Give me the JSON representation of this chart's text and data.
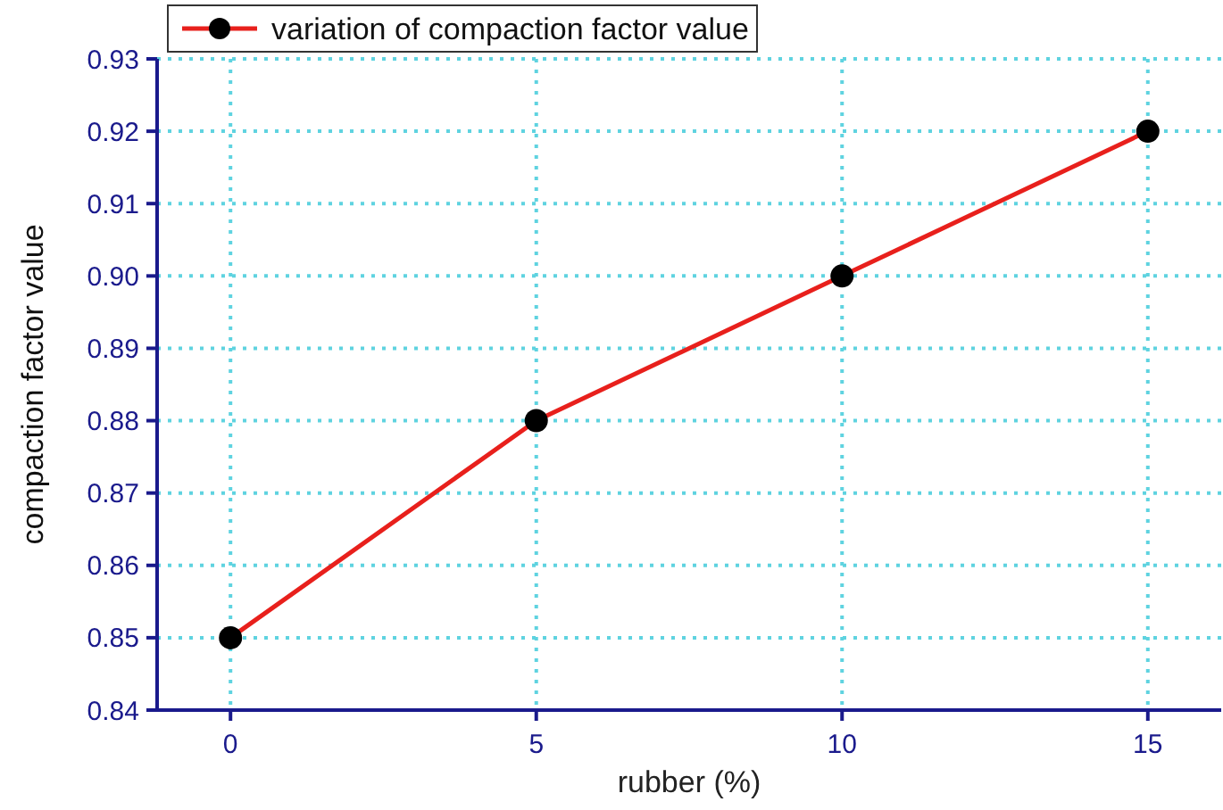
{
  "chart_data": {
    "type": "line",
    "xlabel": "rubber (%)",
    "ylabel": "compaction factor value",
    "x": [
      0,
      5,
      10,
      15
    ],
    "series": [
      {
        "name": "variation of compaction factor value",
        "color": "#e8201c",
        "values": [
          0.85,
          0.88,
          0.9,
          0.92
        ]
      }
    ],
    "xlim": [
      -1.2,
      16.2
    ],
    "xticks": [
      0,
      5,
      10,
      15
    ],
    "ylim": [
      0.84,
      0.93
    ],
    "yticks": [
      0.84,
      0.85,
      0.86,
      0.87,
      0.88,
      0.89,
      {
        "value": 0.9,
        "label": "0.90"
      },
      0.91,
      0.92,
      0.93
    ],
    "grid": true,
    "legend": "top left",
    "marker": "circle",
    "line_style": "solid"
  }
}
